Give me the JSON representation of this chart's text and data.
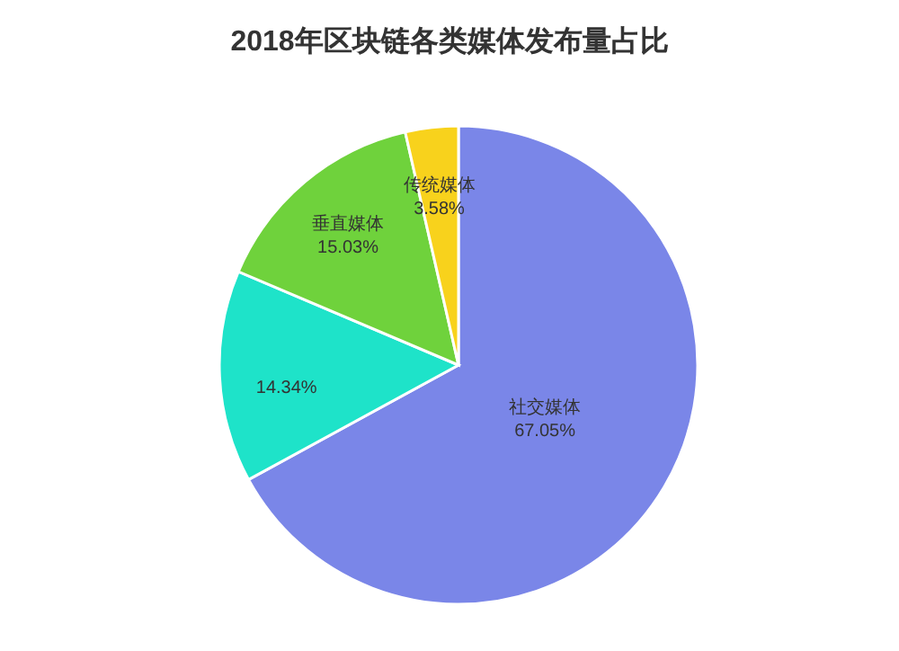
{
  "chart_data": {
    "type": "pie",
    "title": "2018年区块链各类媒体发布量占比",
    "categories": [
      "社交媒体",
      null,
      "垂直媒体",
      "传统媒体"
    ],
    "values": [
      67.05,
      14.34,
      15.03,
      3.58
    ],
    "colors": [
      "#7a86e8",
      "#1ee3c9",
      "#6fd23c",
      "#f8d21c"
    ],
    "value_labels": [
      "67.05%",
      "14.34%",
      "15.03%",
      "3.58%"
    ]
  }
}
